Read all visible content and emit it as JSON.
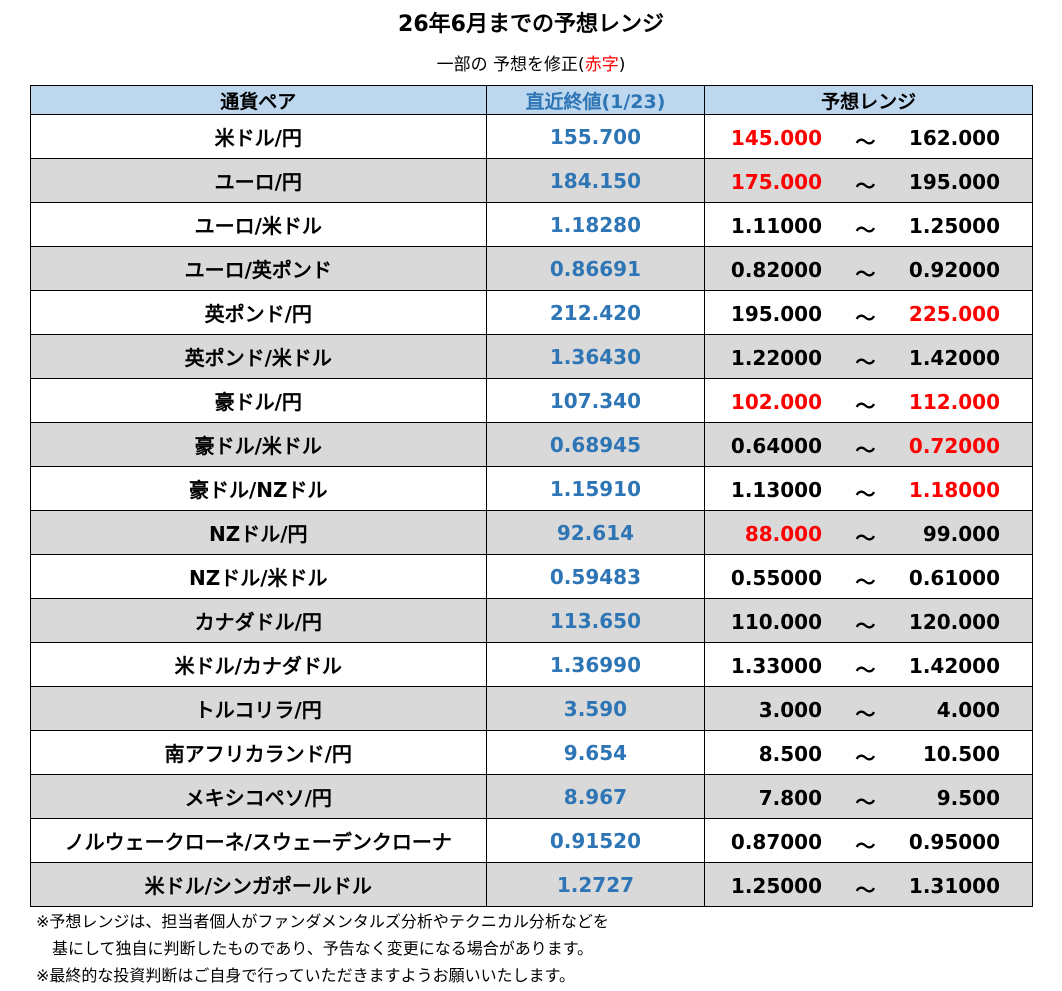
{
  "title": "26年6月までの予想レンジ",
  "subtitle": {
    "text": "一部の 予想を修正(",
    "red": "赤字",
    "close": ")"
  },
  "colors": {
    "header_bg": "#bdd7ee",
    "alt_row": "#d9d9d9",
    "blue": "#2e75b6",
    "red": "#ff0000"
  },
  "headers": [
    "通貨ペア",
    "直近終値(1/23)",
    "予想レンジ"
  ],
  "tilde": "～",
  "rows": [
    {
      "pair": "米ドル/円",
      "last": "155.700",
      "low": "145.000",
      "high": "162.000",
      "low_red": true,
      "high_red": false
    },
    {
      "pair": "ユーロ/円",
      "last": "184.150",
      "low": "175.000",
      "high": "195.000",
      "low_red": true,
      "high_red": false
    },
    {
      "pair": "ユーロ/米ドル",
      "last": "1.18280",
      "low": "1.11000",
      "high": "1.25000",
      "low_red": false,
      "high_red": false
    },
    {
      "pair": "ユーロ/英ポンド",
      "last": "0.86691",
      "low": "0.82000",
      "high": "0.92000",
      "low_red": false,
      "high_red": false
    },
    {
      "pair": "英ポンド/円",
      "last": "212.420",
      "low": "195.000",
      "high": "225.000",
      "low_red": false,
      "high_red": true
    },
    {
      "pair": "英ポンド/米ドル",
      "last": "1.36430",
      "low": "1.22000",
      "high": "1.42000",
      "low_red": false,
      "high_red": false
    },
    {
      "pair": "豪ドル/円",
      "last": "107.340",
      "low": "102.000",
      "high": "112.000",
      "low_red": true,
      "high_red": true
    },
    {
      "pair": "豪ドル/米ドル",
      "last": "0.68945",
      "low": "0.64000",
      "high": "0.72000",
      "low_red": false,
      "high_red": true
    },
    {
      "pair": "豪ドル/NZドル",
      "last": "1.15910",
      "low": "1.13000",
      "high": "1.18000",
      "low_red": false,
      "high_red": true
    },
    {
      "pair": "NZドル/円",
      "last": "92.614",
      "low": "88.000",
      "high": "99.000",
      "low_red": true,
      "high_red": false
    },
    {
      "pair": "NZドル/米ドル",
      "last": "0.59483",
      "low": "0.55000",
      "high": "0.61000",
      "low_red": false,
      "high_red": false
    },
    {
      "pair": "カナダドル/円",
      "last": "113.650",
      "low": "110.000",
      "high": "120.000",
      "low_red": false,
      "high_red": false
    },
    {
      "pair": "米ドル/カナダドル",
      "last": "1.36990",
      "low": "1.33000",
      "high": "1.42000",
      "low_red": false,
      "high_red": false
    },
    {
      "pair": "トルコリラ/円",
      "last": "3.590",
      "low": "3.000",
      "high": "4.000",
      "low_red": false,
      "high_red": false
    },
    {
      "pair": "南アフリカランド/円",
      "last": "9.654",
      "low": "8.500",
      "high": "10.500",
      "low_red": false,
      "high_red": false
    },
    {
      "pair": "メキシコペソ/円",
      "last": "8.967",
      "low": "7.800",
      "high": "9.500",
      "low_red": false,
      "high_red": false
    },
    {
      "pair": "ノルウェークローネ/スウェーデンクローナ",
      "last": "0.91520",
      "low": "0.87000",
      "high": "0.95000",
      "low_red": false,
      "high_red": false
    },
    {
      "pair": "米ドル/シンガポールドル",
      "last": "1.2727",
      "low": "1.25000",
      "high": "1.31000",
      "low_red": false,
      "high_red": false
    }
  ],
  "notes": [
    "※予想レンジは、担当者個人がファンダメンタルズ分析やテクニカル分析などを",
    "　基にして独自に判断したものであり、予告なく変更になる場合があります。",
    "※最終的な投資判断はご自身で行っていただきますようお願いいたします。"
  ]
}
